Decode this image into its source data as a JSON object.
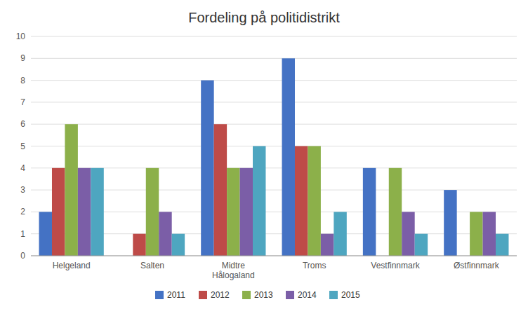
{
  "chart_data": {
    "type": "bar",
    "title": "Fordeling på politidistrikt",
    "categories": [
      "Helgeland",
      "Salten",
      "Midtre\nHålogaland",
      "Troms",
      "Vestfinnmark",
      "Østfinnmark"
    ],
    "series": [
      {
        "name": "2011",
        "color": "#4472C4",
        "values": [
          2,
          0,
          8,
          9,
          4,
          3
        ]
      },
      {
        "name": "2012",
        "color": "#BE4B48",
        "values": [
          4,
          1,
          6,
          5,
          0,
          0
        ]
      },
      {
        "name": "2013",
        "color": "#8CB04A",
        "values": [
          6,
          4,
          4,
          5,
          4,
          2
        ]
      },
      {
        "name": "2014",
        "color": "#7B5EA7",
        "values": [
          4,
          2,
          4,
          1,
          2,
          2
        ]
      },
      {
        "name": "2015",
        "color": "#4EA6C0",
        "values": [
          4,
          1,
          5,
          2,
          1,
          1
        ]
      }
    ],
    "ylim": [
      0,
      10
    ],
    "yticks": [
      0,
      1,
      2,
      3,
      4,
      5,
      6,
      7,
      8,
      9,
      10
    ],
    "grid": true,
    "legend": "bottom"
  }
}
